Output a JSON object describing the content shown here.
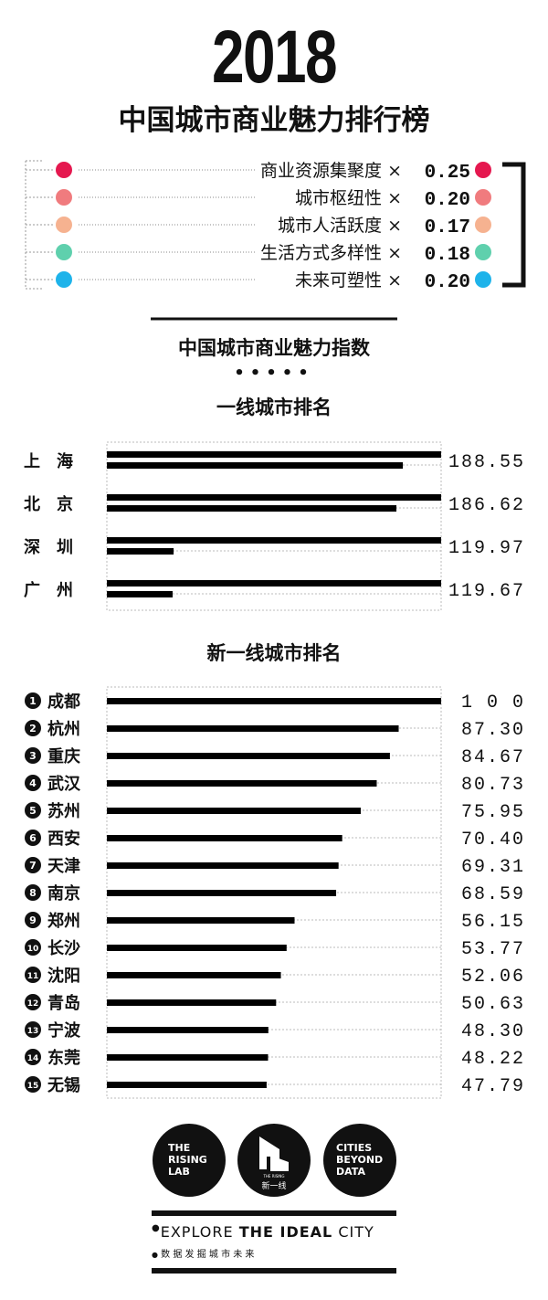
{
  "header": {
    "year": "2018",
    "title": "中国城市商业魅力排行榜"
  },
  "legend": [
    {
      "label": "商业资源集聚度",
      "weight": "0.25",
      "color": "#e5184f"
    },
    {
      "label": "城市枢纽性",
      "weight": "0.20",
      "color": "#f07b7e"
    },
    {
      "label": "城市人活跃度",
      "weight": "0.17",
      "color": "#f6b290"
    },
    {
      "label": "生活方式多样性",
      "weight": "0.18",
      "color": "#5fd0ad"
    },
    {
      "label": "未来可塑性",
      "weight": "0.20",
      "color": "#1eb3ea"
    }
  ],
  "times_symbol": "×",
  "index_title": "中国城市商业魅力指数",
  "chart_data": [
    {
      "type": "bar",
      "title": "一线城市排名",
      "categories": [
        "上　海",
        "北　京",
        "深　圳",
        "广　州"
      ],
      "values": [
        188.55,
        186.62,
        119.97,
        119.67
      ],
      "value_labels": [
        "188.55",
        "186.62",
        "119.97",
        "119.67"
      ],
      "bar_scale": 100,
      "note_segments": "each value drawn as a full 100 bar plus a second bar for the remainder"
    },
    {
      "type": "bar",
      "title": "新一线城市排名",
      "ranks": [
        "1",
        "2",
        "3",
        "4",
        "5",
        "6",
        "7",
        "8",
        "9",
        "10",
        "11",
        "12",
        "13",
        "14",
        "15"
      ],
      "categories": [
        "成都",
        "杭州",
        "重庆",
        "武汉",
        "苏州",
        "西安",
        "天津",
        "南京",
        "郑州",
        "长沙",
        "沈阳",
        "青岛",
        "宁波",
        "东莞",
        "无锡"
      ],
      "values": [
        100,
        87.3,
        84.67,
        80.73,
        75.95,
        70.4,
        69.31,
        68.59,
        56.15,
        53.77,
        52.06,
        50.63,
        48.3,
        48.22,
        47.79
      ],
      "value_labels": [
        "1 0 0",
        "87.30",
        "84.67",
        "80.73",
        "75.95",
        "70.40",
        "69.31",
        "68.59",
        "56.15",
        "53.77",
        "52.06",
        "50.63",
        "48.30",
        "48.22",
        "47.79"
      ],
      "xlim": [
        0,
        100
      ]
    }
  ],
  "footer": {
    "logos": [
      {
        "lines": [
          "THE",
          "RISING",
          "LAB"
        ]
      },
      {
        "caption_small": "THE RISING",
        "caption": "新一线"
      },
      {
        "lines": [
          "CITIES",
          "BEYOND",
          "DATA"
        ]
      }
    ],
    "slogan_light": "EXPLORE ",
    "slogan_bold": "THE IDEAL",
    "slogan_end": " CITY",
    "slogan_cn": "数 据 发 掘 城 市 未 来"
  }
}
